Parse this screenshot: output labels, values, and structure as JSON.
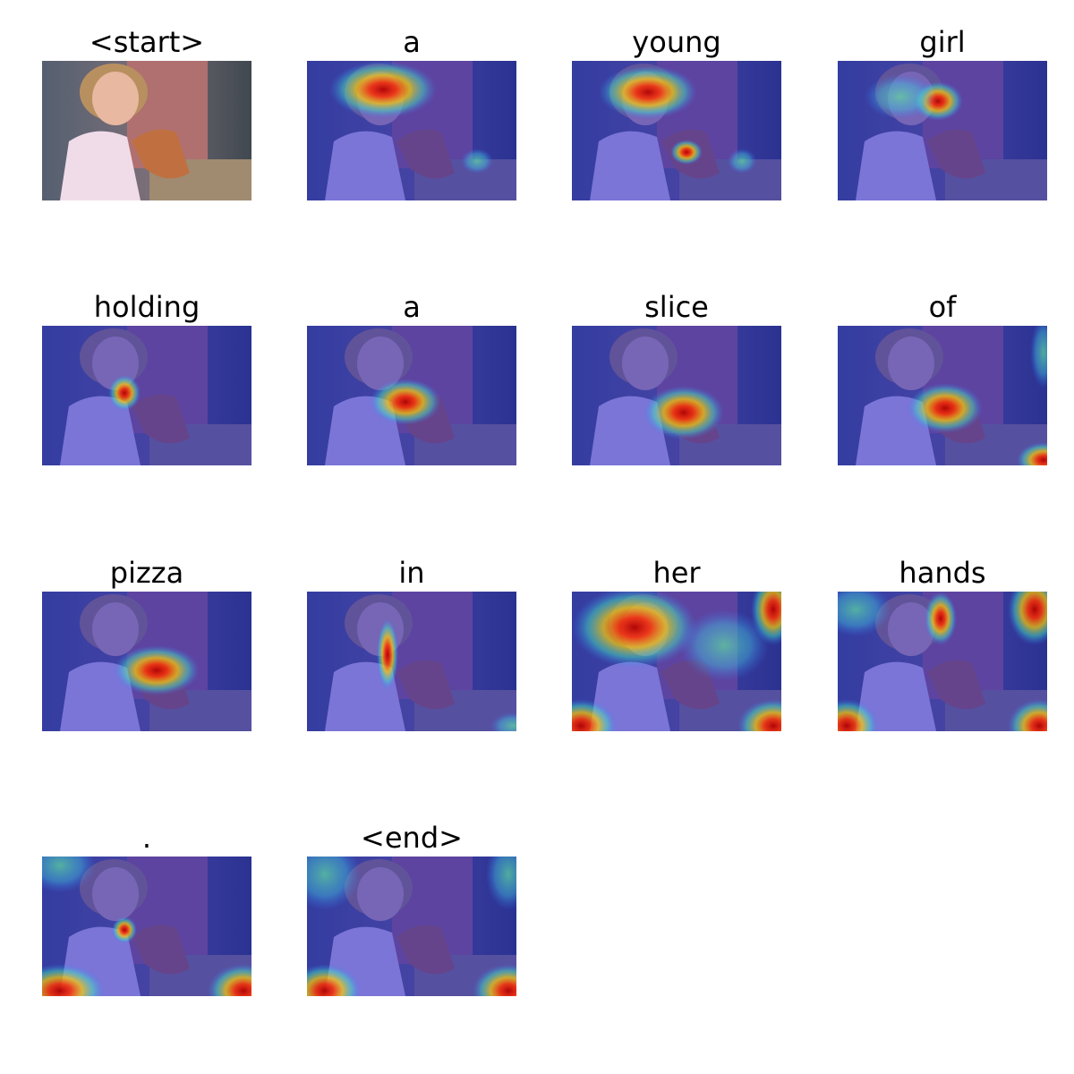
{
  "words": [
    "<start>",
    "a",
    "young",
    "girl",
    "holding",
    "a",
    "slice",
    "of",
    "pizza",
    "in",
    "her",
    "hands",
    ".",
    "<end>"
  ]
}
